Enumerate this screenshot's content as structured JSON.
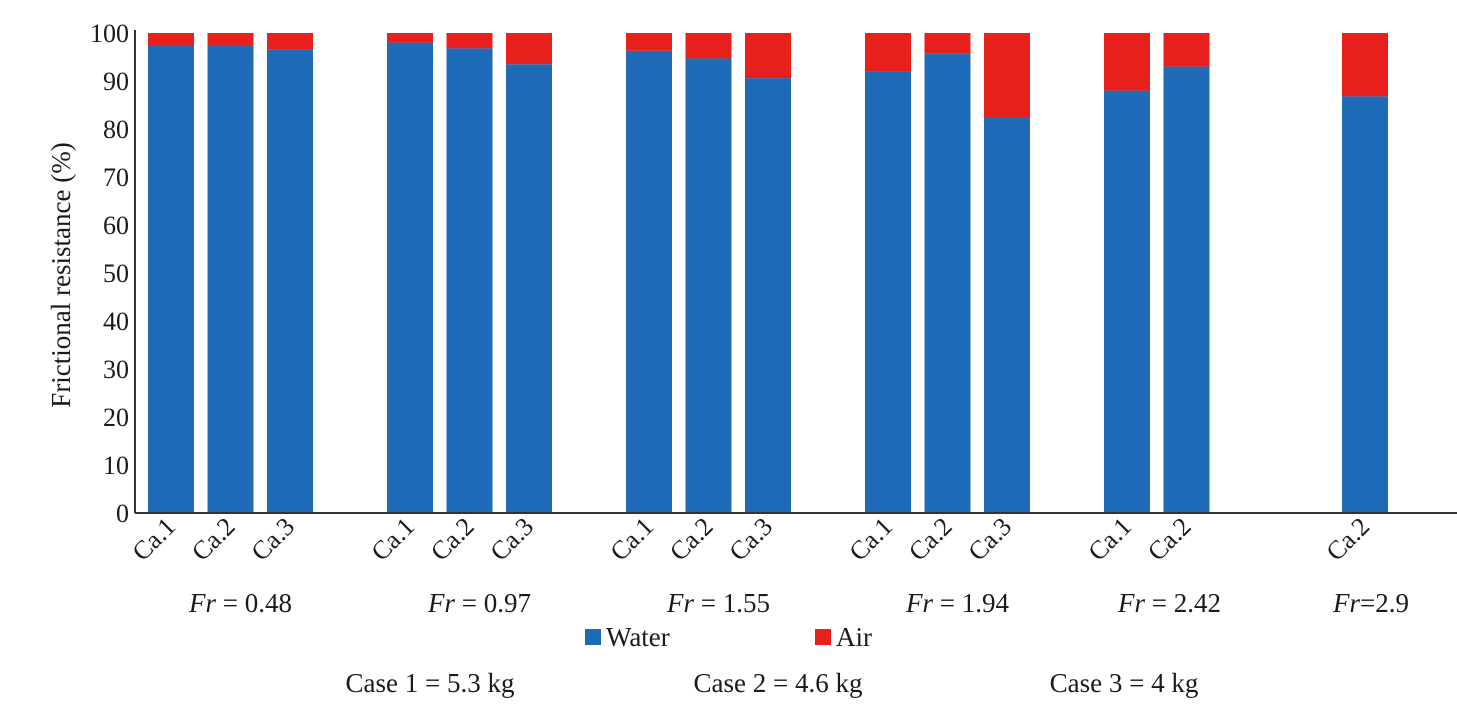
{
  "chart_data": {
    "type": "bar",
    "stacked": true,
    "ylabel": "Frictional resistance (%)",
    "ylim": [
      0,
      100
    ],
    "yticks": [
      0,
      10,
      20,
      30,
      40,
      50,
      60,
      70,
      80,
      90,
      100
    ],
    "grid": false,
    "series": [
      {
        "name": "Water",
        "color": "#1f6bb8"
      },
      {
        "name": "Air",
        "color": "#e8201c"
      }
    ],
    "groups": [
      {
        "label_prefix": "Fr",
        "label_suffix": " = 0.48",
        "bars": [
          {
            "category": "Ca.1",
            "water": 97.5,
            "air": 2.5
          },
          {
            "category": "Ca.2",
            "water": 97.5,
            "air": 2.5
          },
          {
            "category": "Ca.3",
            "water": 96.5,
            "air": 3.5
          }
        ]
      },
      {
        "label_prefix": "Fr",
        "label_suffix": " = 0.97",
        "bars": [
          {
            "category": "Ca.1",
            "water": 98.0,
            "air": 2.0
          },
          {
            "category": "Ca.2",
            "water": 96.8,
            "air": 3.2
          },
          {
            "category": "Ca.3",
            "water": 93.5,
            "air": 6.5
          }
        ]
      },
      {
        "label_prefix": "Fr",
        "label_suffix": " = 1.55",
        "bars": [
          {
            "category": "Ca.1",
            "water": 96.3,
            "air": 3.7
          },
          {
            "category": "Ca.2",
            "water": 94.7,
            "air": 5.3
          },
          {
            "category": "Ca.3",
            "water": 90.6,
            "air": 9.4
          }
        ]
      },
      {
        "label_prefix": "Fr",
        "label_suffix": " = 1.94",
        "bars": [
          {
            "category": "Ca.1",
            "water": 92.0,
            "air": 8.0
          },
          {
            "category": "Ca.2",
            "water": 95.8,
            "air": 4.2
          },
          {
            "category": "Ca.3",
            "water": 82.3,
            "air": 17.7
          }
        ]
      },
      {
        "label_prefix": "Fr",
        "label_suffix": " = 2.42",
        "bars": [
          {
            "category": "Ca.1",
            "water": 88.0,
            "air": 12.0
          },
          {
            "category": "Ca.2",
            "water": 93.0,
            "air": 7.0
          }
        ]
      },
      {
        "label_prefix": "Fr",
        "label_suffix": "=2.9",
        "bars": [
          {
            "category": "Ca.2",
            "water": 86.8,
            "air": 13.2
          }
        ]
      }
    ],
    "legend": [
      "Water",
      "Air"
    ],
    "legend_position": "bottom",
    "notes": [
      "Case 1 = 5.3 kg",
      "Case 2 = 4.6 kg",
      "Case 3 = 4 kg"
    ]
  }
}
